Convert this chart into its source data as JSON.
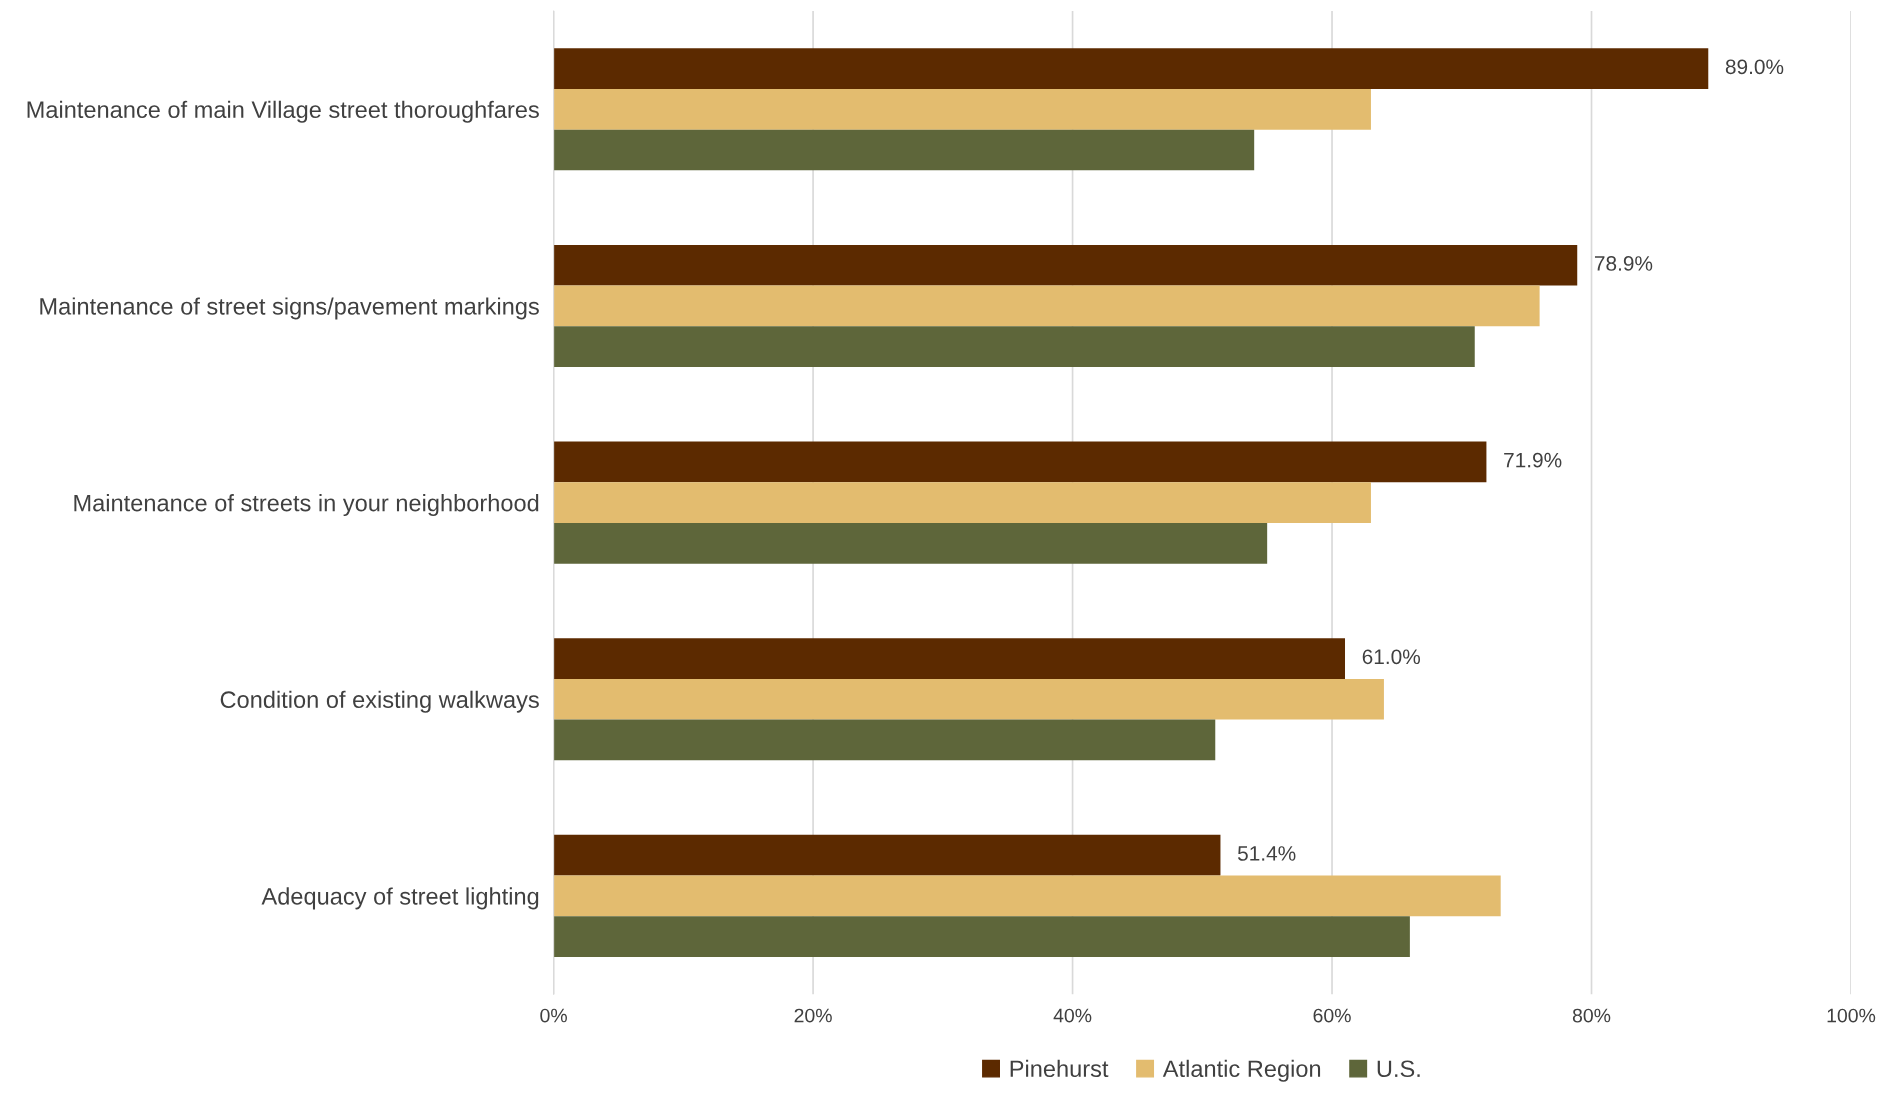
{
  "chart_data": {
    "type": "bar",
    "orientation": "horizontal",
    "categories": [
      "Maintenance of main Village street thoroughfares",
      "Maintenance of street signs/pavement markings",
      "Maintenance of streets in your neighborhood",
      "Condition of existing walkways",
      "Adequacy of street lighting"
    ],
    "series": [
      {
        "name": "Pinehurst",
        "color": "#5c2a00",
        "values": [
          89.0,
          78.9,
          71.9,
          61.0,
          51.4
        ],
        "value_labels": [
          "89.0%",
          "78.9%",
          "71.9%",
          "61.0%",
          "51.4%"
        ]
      },
      {
        "name": "Atlantic Region",
        "color": "#e3bc6f",
        "values": [
          63,
          76,
          63,
          64,
          73
        ]
      },
      {
        "name": "U.S.",
        "color": "#5e663a",
        "values": [
          54,
          71,
          55,
          51,
          66
        ]
      }
    ],
    "xlim": [
      0,
      100
    ],
    "xticks": [
      {
        "value": 0,
        "label": "0%"
      },
      {
        "value": 20,
        "label": "20%"
      },
      {
        "value": 40,
        "label": "40%"
      },
      {
        "value": 60,
        "label": "60%"
      },
      {
        "value": 80,
        "label": "80%"
      },
      {
        "value": 100,
        "label": "100%"
      }
    ],
    "grid": "x",
    "legend": "bottom"
  }
}
